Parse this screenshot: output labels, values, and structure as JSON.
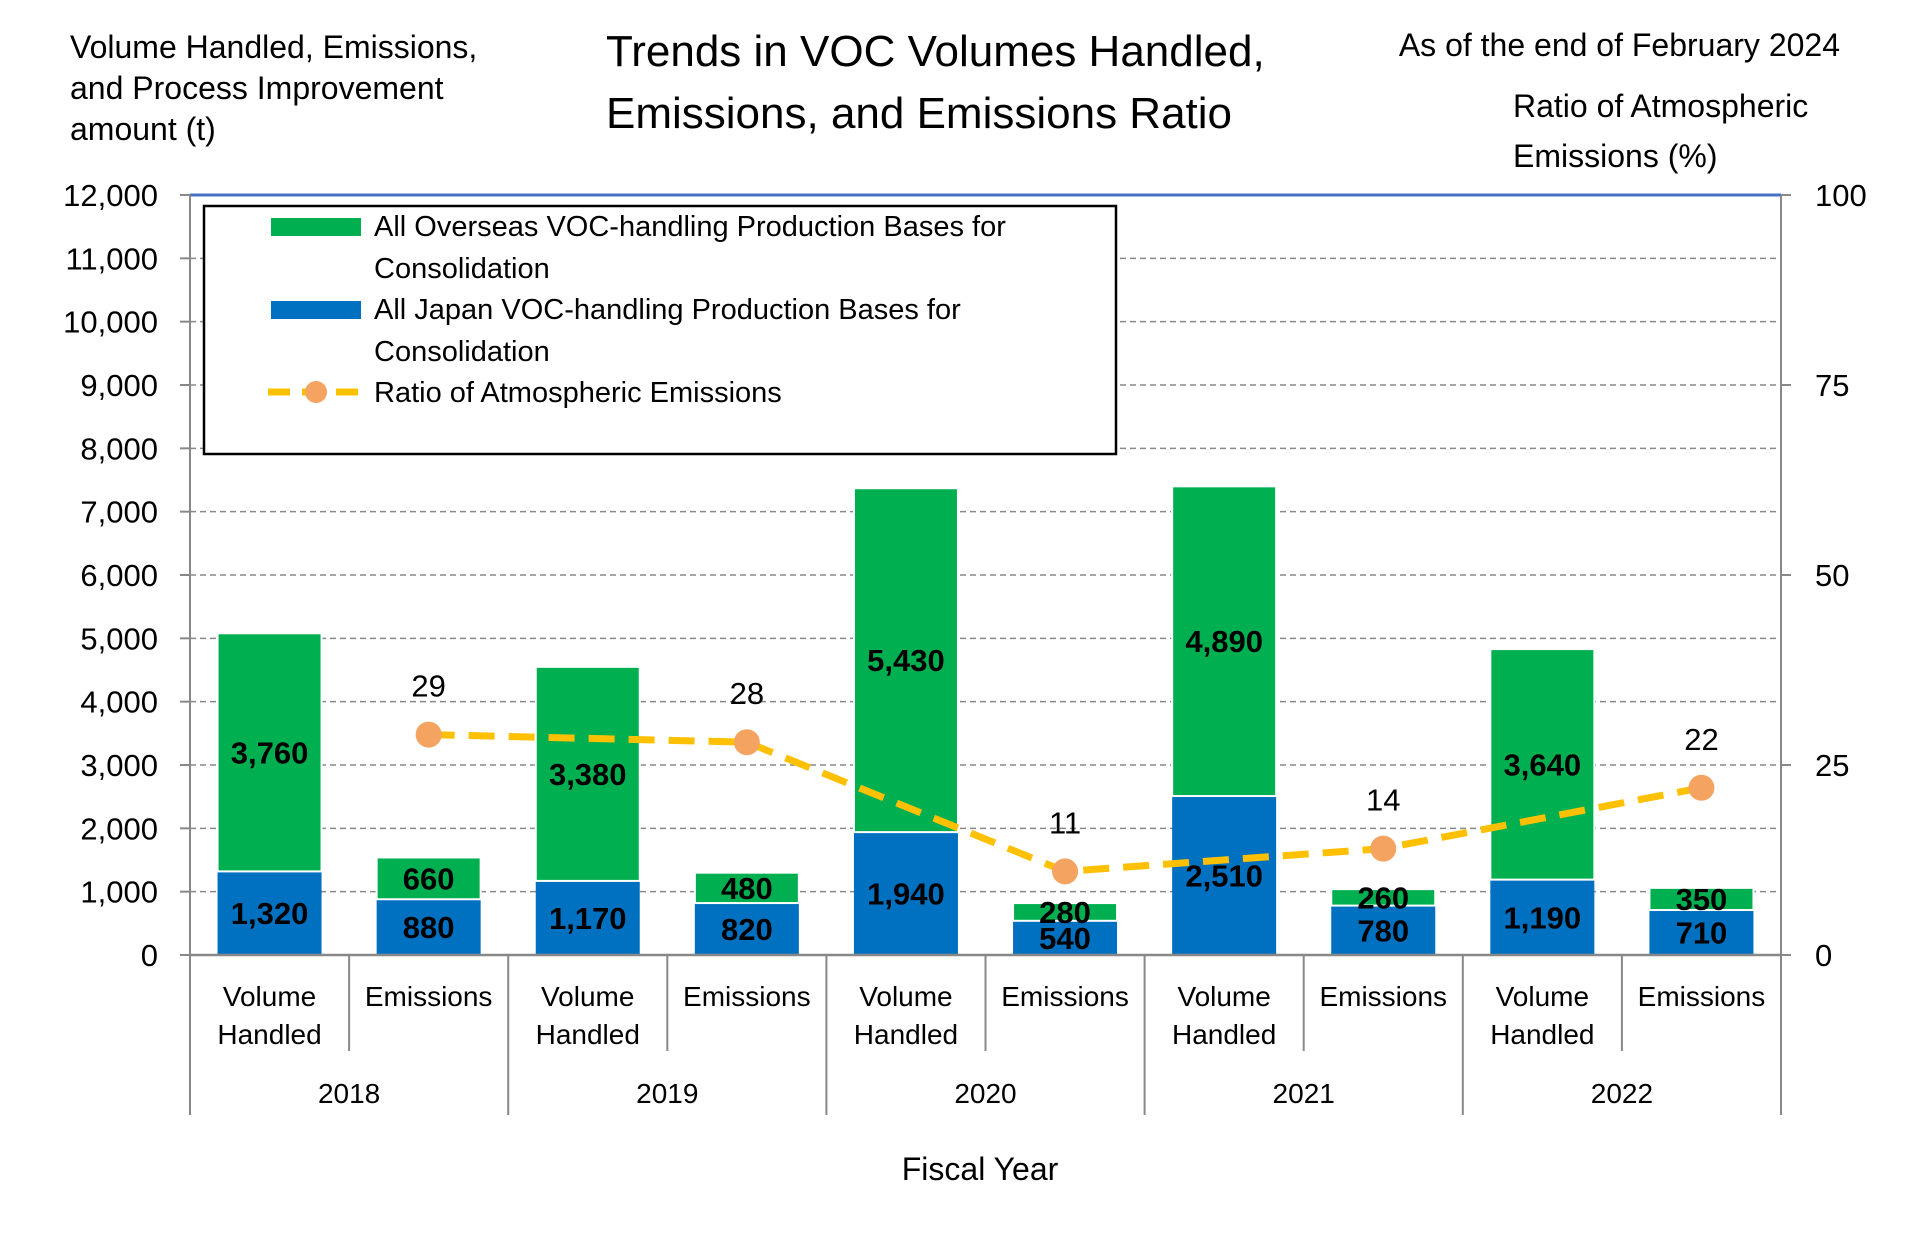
{
  "chart_data": {
    "type": "bar",
    "stacked": true,
    "title": "Trends in VOC Volumes Handled, Emissions, and Emissions Ratio",
    "title_lines": [
      "Trends in VOC Volumes Handled,",
      "Emissions, and Emissions Ratio"
    ],
    "note": "As of the end of February 2024",
    "ylabel_lines": [
      "Volume Handled, Emissions,",
      "and Process Improvement",
      "amount (t)"
    ],
    "y2label_lines": [
      "Ratio of Atmospheric",
      "Emissions (%)"
    ],
    "xlabel": "Fiscal Year",
    "ylim": [
      0,
      12000
    ],
    "yticks": [
      "0",
      "1,000",
      "2,000",
      "3,000",
      "4,000",
      "5,000",
      "6,000",
      "7,000",
      "8,000",
      "9,000",
      "10,000",
      "11,000",
      "12,000"
    ],
    "y2lim": [
      0,
      100
    ],
    "y2ticks": [
      "0",
      "25",
      "50",
      "75",
      "100"
    ],
    "grid": true,
    "legend_placement": "top-left",
    "groups": [
      "2018",
      "2019",
      "2020",
      "2021",
      "2022"
    ],
    "categories": [
      [
        "Volume",
        "Handled"
      ],
      [
        "Emissions"
      ],
      [
        "Volume",
        "Handled"
      ],
      [
        "Emissions"
      ],
      [
        "Volume",
        "Handled"
      ],
      [
        "Emissions"
      ],
      [
        "Volume",
        "Handled"
      ],
      [
        "Emissions"
      ],
      [
        "Volume",
        "Handled"
      ],
      [
        "Emissions"
      ]
    ],
    "series": [
      {
        "name": "All Japan VOC-handling Production Bases for Consolidation",
        "legend_lines": [
          "All Japan VOC-handling Production Bases for",
          "Consolidation"
        ],
        "color": "#0070C0",
        "values": [
          1320,
          880,
          1170,
          820,
          1940,
          540,
          2510,
          780,
          1190,
          710
        ],
        "labels": [
          "1,320",
          "880",
          "1,170",
          "820",
          "1,940",
          "540",
          "2,510",
          "780",
          "1,190",
          "710"
        ]
      },
      {
        "name": "All Overseas VOC-handling Production Bases for Consolidation",
        "legend_lines": [
          "All Overseas VOC-handling Production Bases for",
          "Consolidation"
        ],
        "color": "#00B050",
        "values": [
          3760,
          660,
          3380,
          480,
          5430,
          280,
          4890,
          260,
          3640,
          350
        ],
        "labels": [
          "3,760",
          "660",
          "3,380",
          "480",
          "5,430",
          "280",
          "4,890",
          "260",
          "3,640",
          "350"
        ]
      }
    ],
    "line_series": {
      "name": "Ratio of Atmospheric Emissions",
      "axis": "right",
      "color": "#FFC000",
      "marker_color": "#F4A460",
      "category_index": [
        1,
        3,
        5,
        7,
        9
      ],
      "values": [
        29,
        28,
        11,
        14,
        22
      ],
      "labels": [
        "29",
        "28",
        "11",
        "14",
        "22"
      ]
    }
  }
}
